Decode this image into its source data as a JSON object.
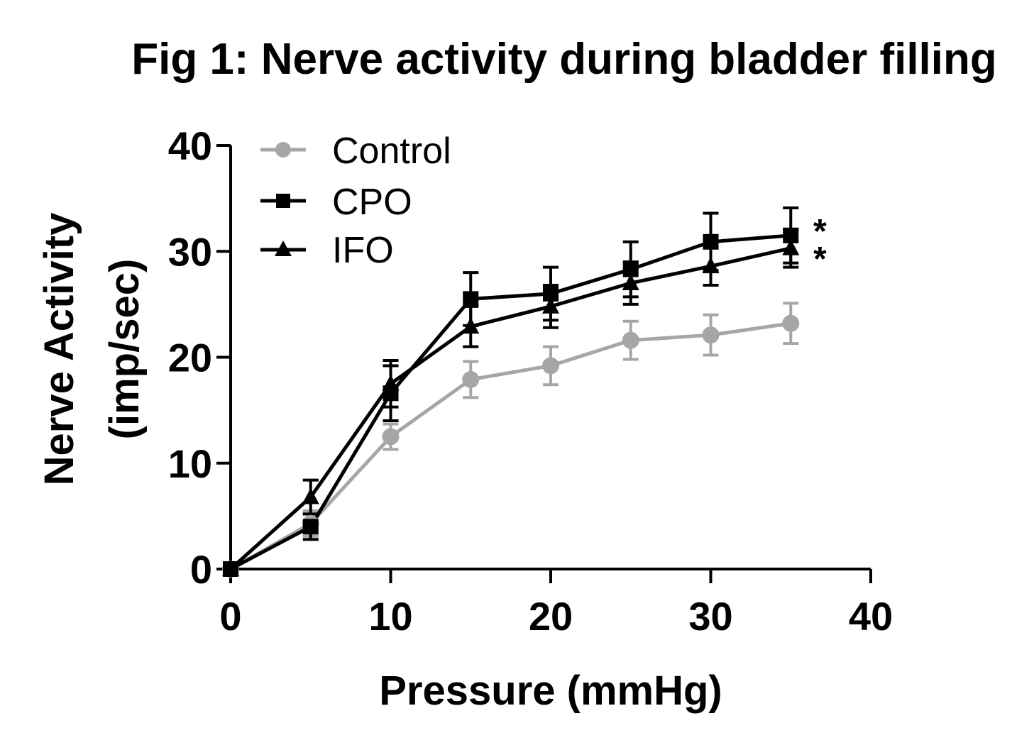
{
  "chart_data": {
    "type": "line",
    "title": "Fig 1: Nerve activity during bladder filling",
    "xlabel": "Pressure (mmHg)",
    "ylabel_lines": [
      "Nerve Activity",
      "(imp/sec)"
    ],
    "xlim": [
      0,
      40
    ],
    "ylim": [
      0,
      40
    ],
    "x_ticks": [
      0,
      10,
      20,
      30,
      40
    ],
    "y_ticks": [
      0,
      10,
      20,
      30,
      40
    ],
    "x_tick_labels": [
      "0",
      "10",
      "20",
      "30",
      "40"
    ],
    "y_tick_labels": [
      "0",
      "10",
      "20",
      "30",
      "40"
    ],
    "grid": false,
    "legend_position": "top-left",
    "series": [
      {
        "name": "Control",
        "color": "#a6a6a6",
        "marker": "circle",
        "x": [
          0,
          5,
          10,
          15,
          20,
          25,
          30,
          35
        ],
        "y": [
          0,
          4.3,
          12.5,
          17.9,
          19.2,
          21.6,
          22.1,
          23.2
        ],
        "error": [
          0,
          1.2,
          1.2,
          1.7,
          1.8,
          1.8,
          1.9,
          1.9
        ]
      },
      {
        "name": "CPO",
        "color": "#000000",
        "marker": "square",
        "x": [
          0,
          5,
          10,
          15,
          20,
          25,
          30,
          35
        ],
        "y": [
          0,
          4.0,
          16.6,
          25.5,
          26.0,
          28.3,
          30.9,
          31.5
        ],
        "error": [
          0,
          1.2,
          2.6,
          2.5,
          2.5,
          2.6,
          2.7,
          2.6
        ]
      },
      {
        "name": "IFO",
        "color": "#000000",
        "marker": "triangle",
        "x": [
          0,
          5,
          10,
          15,
          20,
          25,
          30,
          35
        ],
        "y": [
          0,
          6.8,
          17.5,
          22.9,
          24.8,
          27.0,
          28.6,
          30.3
        ],
        "error": [
          0,
          1.6,
          2.2,
          1.9,
          2.0,
          2.0,
          1.8,
          1.8
        ]
      }
    ],
    "annotations": [
      "*",
      "*"
    ]
  }
}
